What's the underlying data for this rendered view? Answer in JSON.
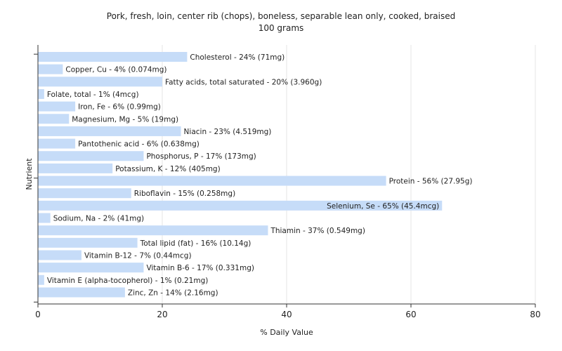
{
  "chart_data": {
    "type": "bar",
    "orientation": "horizontal",
    "title": "Pork, fresh, loin, center rib (chops), boneless, separable lean only, cooked, braised",
    "subtitle": "100 grams",
    "xlabel": "% Daily Value",
    "ylabel": "Nutrient",
    "xlim": [
      0,
      80
    ],
    "xticks": [
      0,
      20,
      40,
      60,
      80
    ],
    "grid": true,
    "bar_color": "#c6dcf8",
    "categories": [
      "Cholesterol",
      "Copper, Cu",
      "Fatty acids, total saturated",
      "Folate, total",
      "Iron, Fe",
      "Magnesium, Mg",
      "Niacin",
      "Pantothenic acid",
      "Phosphorus, P",
      "Potassium, K",
      "Protein",
      "Riboflavin",
      "Selenium, Se",
      "Sodium, Na",
      "Thiamin",
      "Total lipid (fat)",
      "Vitamin B-12",
      "Vitamin B-6",
      "Vitamin E (alpha-tocopherol)",
      "Zinc, Zn"
    ],
    "values": [
      24,
      4,
      20,
      1,
      6,
      5,
      23,
      6,
      17,
      12,
      56,
      15,
      65,
      2,
      37,
      16,
      7,
      17,
      1,
      14
    ],
    "labels": [
      "Cholesterol - 24% (71mg)",
      "Copper, Cu - 4% (0.074mg)",
      "Fatty acids, total saturated - 20% (3.960g)",
      "Folate, total - 1% (4mcg)",
      "Iron, Fe - 6% (0.99mg)",
      "Magnesium, Mg - 5% (19mg)",
      "Niacin - 23% (4.519mg)",
      "Pantothenic acid - 6% (0.638mg)",
      "Phosphorus, P - 17% (173mg)",
      "Potassium, K - 12% (405mg)",
      "Protein - 56% (27.95g)",
      "Riboflavin - 15% (0.258mg)",
      "Selenium, Se - 65% (45.4mcg)",
      "Sodium, Na - 2% (41mg)",
      "Thiamin - 37% (0.549mg)",
      "Total lipid (fat) - 16% (10.14g)",
      "Vitamin B-12 - 7% (0.44mcg)",
      "Vitamin B-6 - 17% (0.331mg)",
      "Vitamin E (alpha-tocopherol) - 1% (0.21mg)",
      "Zinc, Zn - 14% (2.16mg)"
    ]
  }
}
